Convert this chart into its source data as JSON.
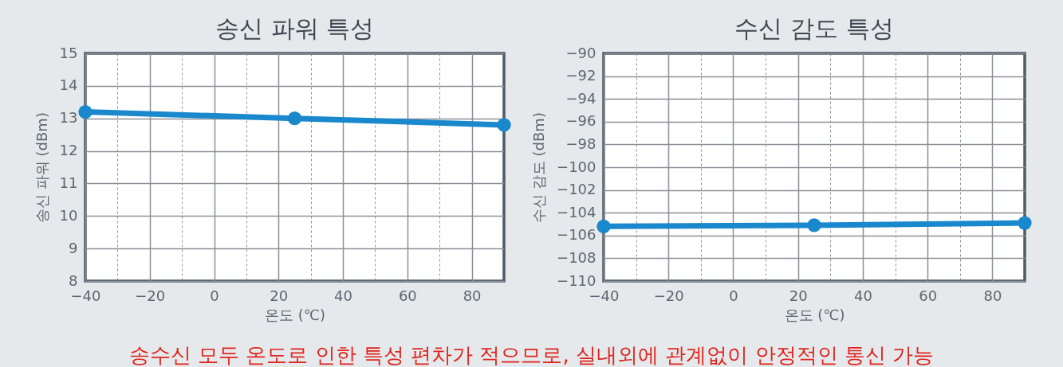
{
  "chart_data": [
    {
      "type": "line",
      "title": "송신 파워 특성",
      "xlabel": "온도 (℃)",
      "ylabel": "송신 파워 (dBm)",
      "x": [
        -40,
        25,
        90
      ],
      "series": [
        {
          "color": "#1a88cc",
          "values": [
            13.2,
            13.0,
            12.8
          ]
        }
      ],
      "xlim": [
        -40,
        90
      ],
      "xticks": [
        -40,
        {
          "value": -30,
          "label": null
        },
        -20,
        {
          "value": -10,
          "label": null
        },
        0,
        {
          "value": 10,
          "label": null
        },
        20,
        {
          "value": 30,
          "label": null
        },
        40,
        {
          "value": 50,
          "label": null
        },
        60,
        {
          "value": 70,
          "label": null
        },
        80
      ],
      "ylim": [
        8,
        15
      ],
      "yticks": [
        8,
        9,
        10,
        11,
        12,
        13,
        14,
        15
      ],
      "grid": true,
      "marker": "circle",
      "line_style": "solid"
    },
    {
      "type": "line",
      "title": "수신 감도 특성",
      "xlabel": "온도 (℃)",
      "ylabel": "수신 감도 (dBm)",
      "x": [
        -40,
        25,
        90
      ],
      "series": [
        {
          "color": "#1a88cc",
          "values": [
            -105.2,
            -105.1,
            -104.9
          ]
        }
      ],
      "xlim": [
        -40,
        90
      ],
      "xticks": [
        -40,
        {
          "value": -30,
          "label": null
        },
        -20,
        {
          "value": -10,
          "label": null
        },
        0,
        {
          "value": 10,
          "label": null
        },
        20,
        {
          "value": 30,
          "label": null
        },
        40,
        {
          "value": 50,
          "label": null
        },
        60,
        {
          "value": 70,
          "label": null
        },
        80
      ],
      "ylim": [
        -110,
        -90
      ],
      "yticks": [
        -110,
        -108,
        -106,
        -104,
        -102,
        -100,
        -98,
        -96,
        -94,
        -92,
        -90
      ],
      "grid": true,
      "marker": "circle",
      "line_style": "solid",
      "annotations": [
        "송수신 모두 온도로 인한 특성 편차가 적으므로, 실내외에 관계없이 안정적인 통신 가능"
      ]
    }
  ]
}
